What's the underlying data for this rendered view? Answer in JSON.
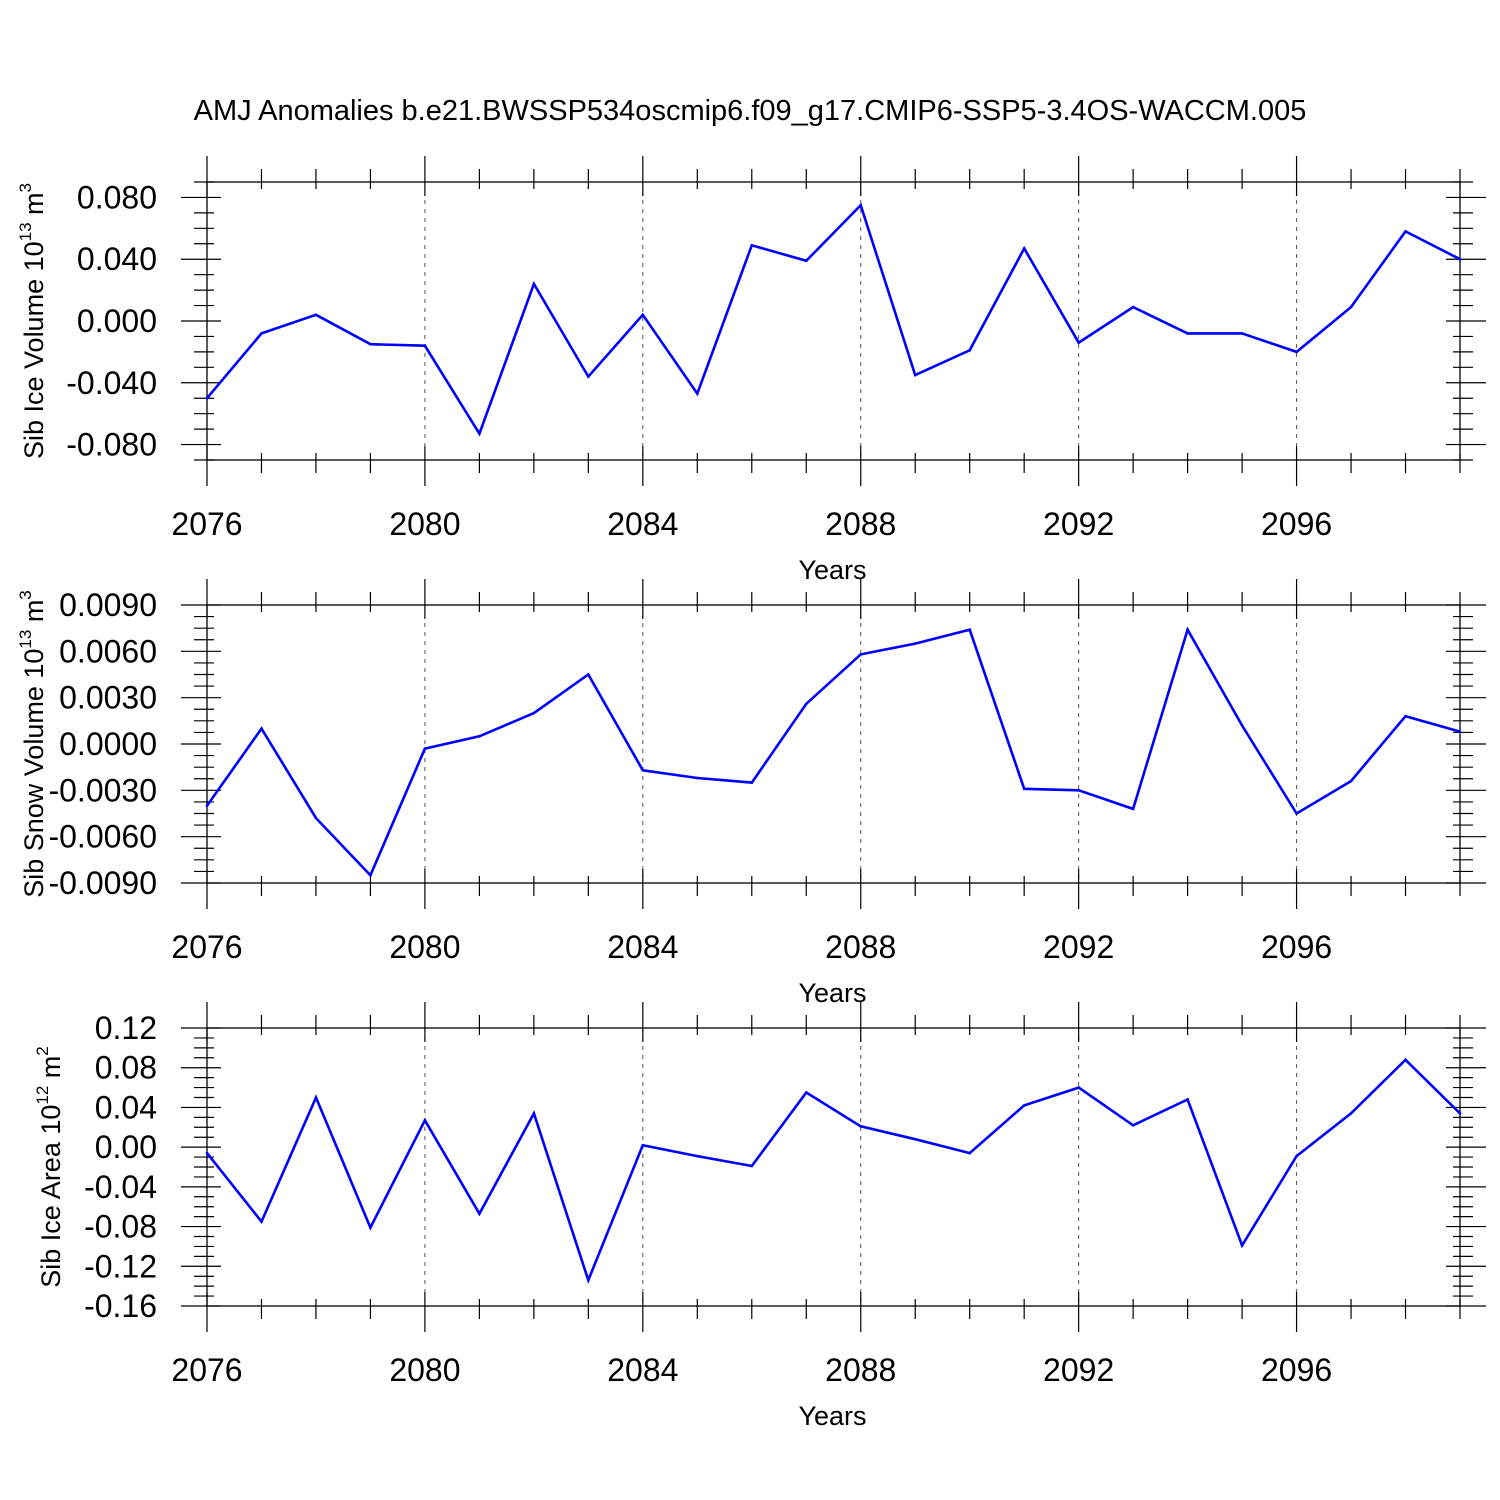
{
  "figure": {
    "title": "AMJ Anomalies b.e21.BWSSP534oscmip6.f09_g17.CMIP6-SSP5-3.4OS-WACCM.005"
  },
  "chart_data": [
    {
      "type": "line",
      "name": "sib-ice-volume",
      "ylabel": {
        "base": "Sib Ice Volume 10",
        "sup": "13",
        "unit": " m",
        "unitsup": "3"
      },
      "xlabel": "Years",
      "xlim": [
        2076,
        2099
      ],
      "ylim": [
        -0.09,
        0.09
      ],
      "xticks": [
        2076,
        2080,
        2084,
        2088,
        2092,
        2096
      ],
      "xtick_labels": [
        "2076",
        "2080",
        "2084",
        "2088",
        "2092",
        "2096"
      ],
      "yticks": [
        0.08,
        0.04,
        0.0,
        -0.04,
        -0.08
      ],
      "ytick_labels": [
        "0.080",
        "0.040",
        "0.000",
        "-0.040",
        "-0.080"
      ],
      "grid": "vertical dashed at major x ticks",
      "color": "#0000ff",
      "x": [
        2076,
        2077,
        2078,
        2079,
        2080,
        2081,
        2082,
        2083,
        2084,
        2085,
        2086,
        2087,
        2088,
        2089,
        2090,
        2091,
        2092,
        2093,
        2094,
        2095,
        2096,
        2097,
        2098,
        2099
      ],
      "values": [
        -0.05,
        -0.008,
        0.004,
        -0.015,
        -0.016,
        -0.073,
        0.024,
        -0.036,
        0.004,
        -0.047,
        0.049,
        0.039,
        0.075,
        -0.035,
        -0.019,
        0.047,
        -0.014,
        0.009,
        -0.008,
        -0.008,
        -0.02,
        0.009,
        0.058,
        0.04
      ]
    },
    {
      "type": "line",
      "name": "sib-snow-volume",
      "ylabel": {
        "base": "Sib Snow Volume 10",
        "sup": "13",
        "unit": " m",
        "unitsup": "3"
      },
      "xlabel": "Years",
      "xlim": [
        2076,
        2099
      ],
      "ylim": [
        -0.009,
        0.009
      ],
      "xticks": [
        2076,
        2080,
        2084,
        2088,
        2092,
        2096
      ],
      "xtick_labels": [
        "2076",
        "2080",
        "2084",
        "2088",
        "2092",
        "2096"
      ],
      "yticks": [
        0.009,
        0.006,
        0.003,
        0.0,
        -0.003,
        -0.006,
        -0.009
      ],
      "ytick_labels": [
        "0.0090",
        "0.0060",
        "0.0030",
        "0.0000",
        "-0.0030",
        "-0.0060",
        "-0.0090"
      ],
      "grid": "vertical dashed at major x ticks",
      "color": "#0000ff",
      "x": [
        2076,
        2077,
        2078,
        2079,
        2080,
        2081,
        2082,
        2083,
        2084,
        2085,
        2086,
        2087,
        2088,
        2089,
        2090,
        2091,
        2092,
        2093,
        2094,
        2095,
        2096,
        2097,
        2098,
        2099
      ],
      "values": [
        -0.004,
        0.001,
        -0.0048,
        -0.0085,
        -0.0003,
        0.0005,
        0.002,
        0.0045,
        -0.0017,
        -0.0022,
        -0.0025,
        0.0026,
        0.0058,
        0.0065,
        0.0074,
        -0.0029,
        -0.003,
        -0.0042,
        0.0074,
        0.0012,
        -0.0045,
        -0.0024,
        0.0018,
        0.0008
      ]
    },
    {
      "type": "line",
      "name": "sib-ice-area",
      "ylabel": {
        "base": "Sib Ice Area 10",
        "sup": "12",
        "unit": " m",
        "unitsup": "2"
      },
      "xlabel": "Years",
      "xlim": [
        2076,
        2099
      ],
      "ylim": [
        -0.16,
        0.12
      ],
      "xticks": [
        2076,
        2080,
        2084,
        2088,
        2092,
        2096
      ],
      "xtick_labels": [
        "2076",
        "2080",
        "2084",
        "2088",
        "2092",
        "2096"
      ],
      "yticks": [
        0.12,
        0.08,
        0.04,
        0.0,
        -0.04,
        -0.08,
        -0.12,
        -0.16
      ],
      "ytick_labels": [
        "0.12",
        "0.08",
        "0.04",
        "0.00",
        "-0.04",
        "-0.08",
        "-0.12",
        "-0.16"
      ],
      "grid": "vertical dashed at major x ticks",
      "color": "#0000ff",
      "x": [
        2076,
        2077,
        2078,
        2079,
        2080,
        2081,
        2082,
        2083,
        2084,
        2085,
        2086,
        2087,
        2088,
        2089,
        2090,
        2091,
        2092,
        2093,
        2094,
        2095,
        2096,
        2097,
        2098,
        2099
      ],
      "values": [
        -0.006,
        -0.075,
        0.05,
        -0.081,
        0.027,
        -0.067,
        0.034,
        -0.134,
        0.002,
        -0.009,
        -0.019,
        0.055,
        0.021,
        0.008,
        -0.006,
        0.042,
        0.06,
        0.022,
        0.048,
        -0.099,
        -0.009,
        0.034,
        0.088,
        0.034
      ]
    }
  ]
}
